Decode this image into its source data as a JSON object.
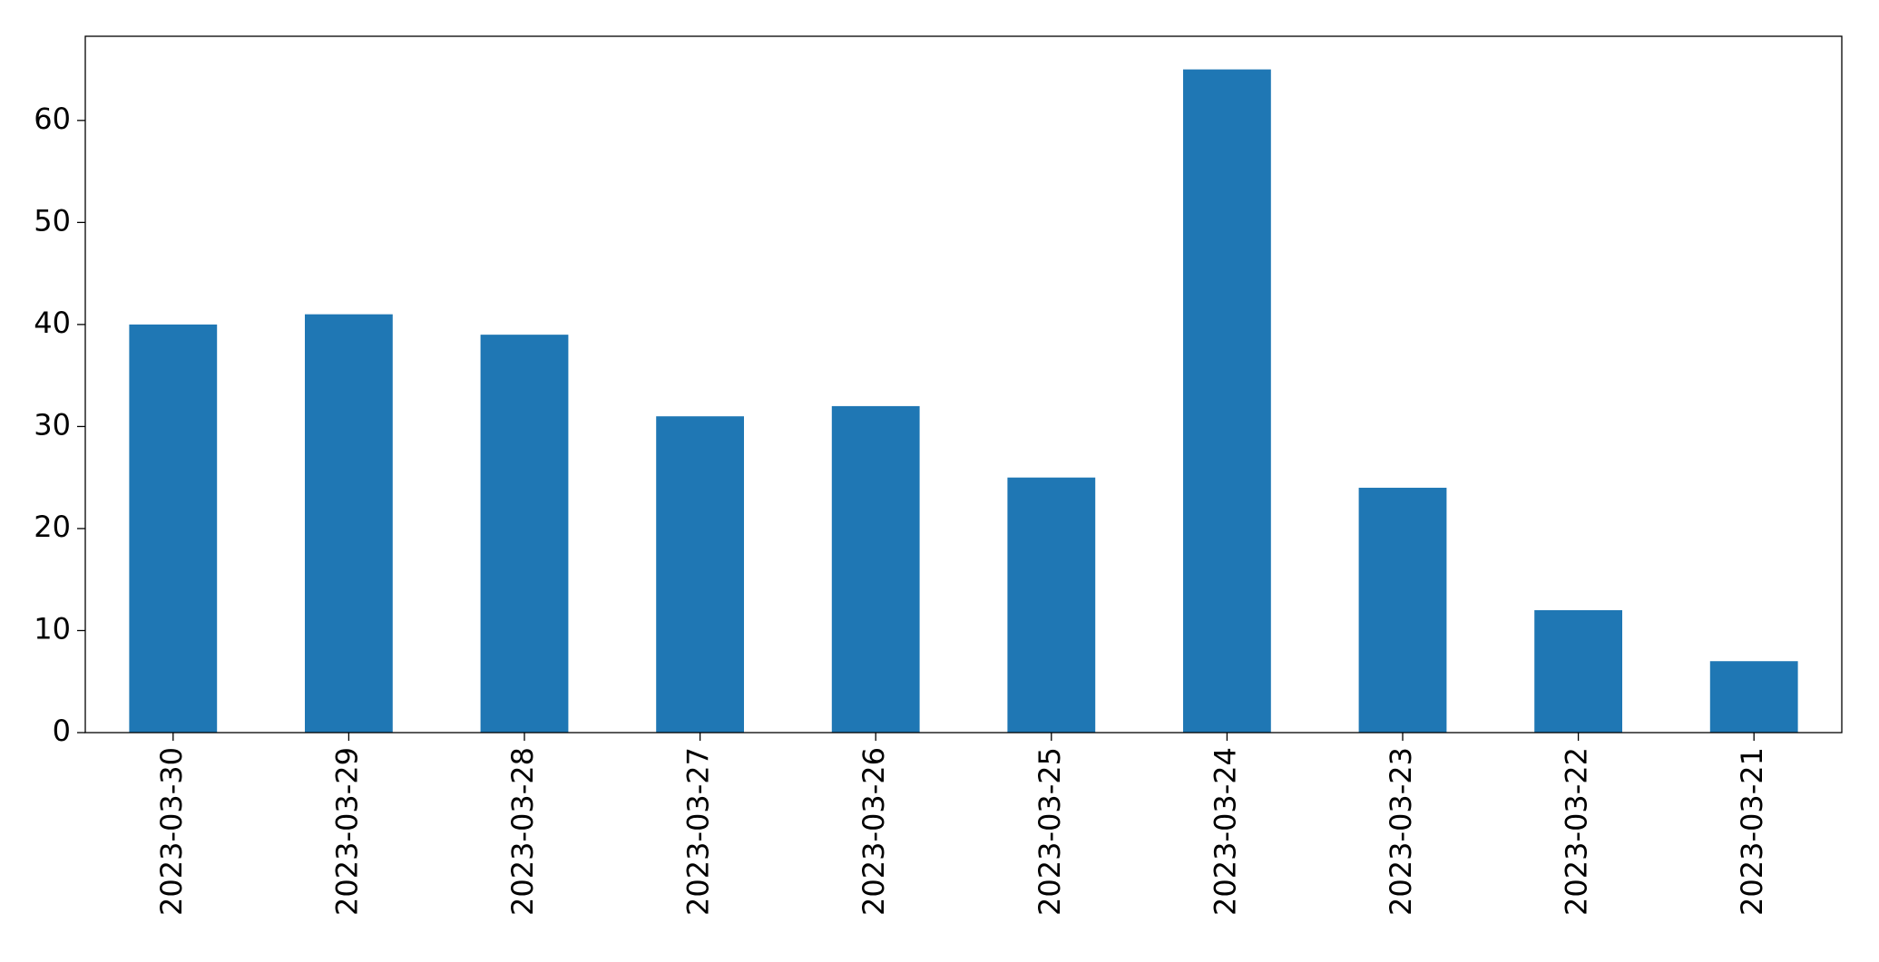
{
  "chart_data": {
    "type": "bar",
    "categories": [
      "2023-03-30",
      "2023-03-29",
      "2023-03-28",
      "2023-03-27",
      "2023-03-26",
      "2023-03-25",
      "2023-03-24",
      "2023-03-23",
      "2023-03-22",
      "2023-03-21"
    ],
    "values": [
      40,
      41,
      39,
      31,
      32,
      25,
      65,
      24,
      12,
      7
    ],
    "color": "#1f77b4",
    "ylim": [
      0,
      68.25
    ],
    "yticks": [
      0,
      10,
      20,
      30,
      40,
      50,
      60
    ],
    "grid": false
  }
}
